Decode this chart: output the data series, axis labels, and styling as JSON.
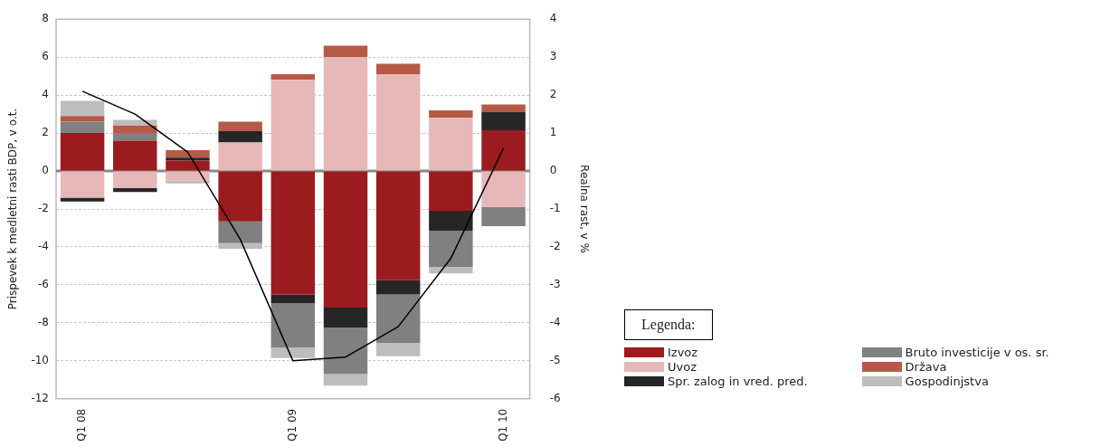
{
  "chart_data": {
    "type": "bar",
    "stacked": true,
    "ylabel": "Prispevek k medletni rasti BDP, v o.t.",
    "y2label": "Realna rast, v %",
    "legend_title": "Legenda:",
    "categories": [
      "Q1 08",
      null,
      null,
      null,
      "Q1 09",
      null,
      null,
      null,
      "Q1 10"
    ],
    "ylim": [
      -12,
      8
    ],
    "yticks": [
      -12,
      -10,
      -8,
      -6,
      -4,
      -2,
      0,
      2,
      4,
      6,
      8
    ],
    "y2lim": [
      -6,
      4
    ],
    "y2ticks": [
      -6,
      -5,
      -4,
      -3,
      -2,
      -1,
      0,
      1,
      2,
      3,
      4
    ],
    "grid": "y",
    "legend": "bottom right",
    "series": [
      {
        "name": "Izvoz",
        "color": "#9b1b1f",
        "values": [
          2.0,
          1.6,
          0.55,
          -2.65,
          -6.5,
          -7.2,
          -5.75,
          -2.1,
          2.15
        ]
      },
      {
        "name": "Uvoz",
        "color": "#e6b8b8",
        "values": [
          -1.4,
          -0.9,
          -0.5,
          1.5,
          4.8,
          6.0,
          5.1,
          2.8,
          -1.9
        ]
      },
      {
        "name": "Spr. zalog in vred. pred.",
        "color": "#262626",
        "values": [
          -0.2,
          -0.2,
          0.15,
          0.6,
          -0.45,
          -1.05,
          -0.75,
          -1.05,
          0.95
        ]
      },
      {
        "name": "Bruto investicije v os. sr.",
        "color": "#808080",
        "values": [
          0.6,
          0.4,
          null,
          -1.15,
          -2.35,
          -2.45,
          -2.55,
          -1.9,
          -1.0
        ]
      },
      {
        "name": "Država",
        "color": "#b55a47",
        "values": [
          0.3,
          0.4,
          0.4,
          0.5,
          0.3,
          0.6,
          0.55,
          0.4,
          0.4
        ]
      },
      {
        "name": "Gospodinjstva",
        "color": "#bdbdbd",
        "values": [
          0.8,
          0.3,
          -0.15,
          -0.3,
          -0.55,
          -0.6,
          -0.7,
          -0.35,
          null
        ]
      },
      {
        "type": "line",
        "axis": "y2",
        "color": "#000000",
        "marker": "none",
        "values": [
          2.1,
          1.5,
          0.5,
          -1.8,
          -5.0,
          -4.9,
          -4.1,
          -2.3,
          0.6
        ]
      }
    ]
  }
}
